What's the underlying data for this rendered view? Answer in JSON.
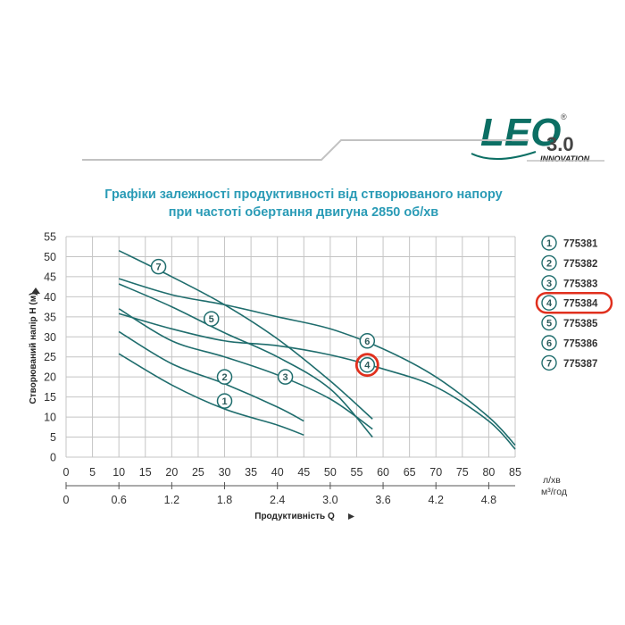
{
  "brand": {
    "logo_main": "LEO",
    "logo_version": "3.0",
    "logo_tagline": "INNOVATION",
    "registered": "®"
  },
  "title": {
    "line1": "Графіки залежності продуктивності від створюваного напору",
    "line2": "при частоті обертання двигуна 2850 об/хв"
  },
  "colors": {
    "title": "#2a9bb6",
    "curve": "#1f6d6d",
    "grid": "#c4c4c4",
    "highlight": "#e0301e",
    "logo": "#0c6f64"
  },
  "chart_data": {
    "type": "line",
    "ylabel": "Створюваний напір H (м)",
    "xlabel": "Продуктивність Q",
    "x_unit_primary": "л/хв",
    "x_unit_secondary": "м³/год",
    "xlim": [
      0,
      85
    ],
    "ylim": [
      0,
      55
    ],
    "x_ticks": [
      "0",
      "5",
      "10",
      "15",
      "20",
      "25",
      "30",
      "35",
      "40",
      "45",
      "50",
      "55",
      "60",
      "65",
      "70",
      "75",
      "80",
      "85"
    ],
    "y_ticks": [
      "0",
      "5",
      "10",
      "15",
      "20",
      "25",
      "30",
      "35",
      "40",
      "45",
      "50",
      "55"
    ],
    "x2_ticks": [
      {
        "label": "0",
        "at": 0
      },
      {
        "label": "0.6",
        "at": 10
      },
      {
        "label": "1.2",
        "at": 20
      },
      {
        "label": "1.8",
        "at": 30
      },
      {
        "label": "2.4",
        "at": 40
      },
      {
        "label": "3.0",
        "at": 50
      },
      {
        "label": "3.6",
        "at": 60
      },
      {
        "label": "4.2",
        "at": 70
      },
      {
        "label": "4.8",
        "at": 80
      }
    ],
    "grid": true,
    "legend_position": "right",
    "highlighted_series": "4",
    "series": [
      {
        "name": "775381",
        "marker": "1",
        "marker_at": [
          30,
          14
        ],
        "x": [
          10,
          20,
          30,
          40,
          45
        ],
        "y": [
          25.8,
          18,
          12,
          8,
          5.5
        ]
      },
      {
        "name": "775382",
        "marker": "2",
        "marker_at": [
          30,
          20
        ],
        "x": [
          10,
          20,
          30,
          40,
          45
        ],
        "y": [
          31.3,
          23.3,
          18.3,
          12.5,
          9
        ]
      },
      {
        "name": "775383",
        "marker": "3",
        "marker_at": [
          41.5,
          20
        ],
        "x": [
          10,
          20,
          30,
          40,
          50,
          58
        ],
        "y": [
          37,
          29,
          25,
          20.5,
          14.5,
          7
        ]
      },
      {
        "name": "775384",
        "marker": "4",
        "marker_at": [
          57,
          23
        ],
        "x": [
          10,
          20,
          30,
          40,
          50,
          60,
          70,
          80,
          85
        ],
        "y": [
          35.8,
          32,
          29,
          27.8,
          25.5,
          22,
          17.5,
          9,
          2
        ]
      },
      {
        "name": "775385",
        "marker": "5",
        "marker_at": [
          27.5,
          34.5
        ],
        "x": [
          10,
          20,
          30,
          40,
          50,
          58
        ],
        "y": [
          43.2,
          37.5,
          31,
          25,
          17,
          5
        ]
      },
      {
        "name": "775386",
        "marker": "6",
        "marker_at": [
          57,
          29
        ],
        "x": [
          10,
          20,
          30,
          40,
          50,
          60,
          70,
          80,
          85
        ],
        "y": [
          44.5,
          40.5,
          38,
          35,
          32,
          27,
          20,
          10,
          3
        ]
      },
      {
        "name": "775387",
        "marker": "7",
        "marker_at": [
          17.5,
          47.5
        ],
        "x": [
          10,
          20,
          30,
          40,
          50,
          58
        ],
        "y": [
          51.5,
          45,
          38,
          29.5,
          19,
          9.5
        ]
      }
    ]
  }
}
